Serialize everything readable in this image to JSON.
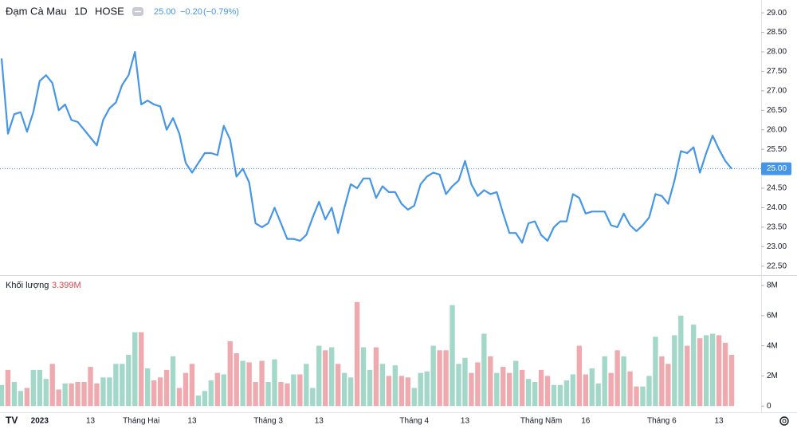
{
  "chart_data": [
    {
      "type": "line",
      "symbol": "Đạm Cà Mau",
      "interval": "1D",
      "exchange": "HOSE",
      "price_label": "25.00",
      "change_label": "−0.20",
      "change_pct_label": "(−0.79%)",
      "color": "#4596e6",
      "values": [
        27.83,
        25.9,
        26.4,
        26.45,
        25.95,
        26.45,
        27.25,
        27.4,
        27.2,
        26.5,
        26.65,
        26.25,
        26.2,
        26.0,
        25.8,
        25.6,
        26.25,
        26.55,
        26.7,
        27.15,
        27.4,
        28.0,
        26.65,
        26.75,
        26.65,
        26.6,
        26.0,
        26.3,
        25.9,
        25.15,
        24.9,
        25.15,
        25.4,
        25.4,
        25.35,
        26.1,
        25.75,
        24.8,
        25.0,
        24.65,
        23.6,
        23.5,
        23.6,
        24.0,
        23.6,
        23.2,
        23.2,
        23.15,
        23.3,
        23.75,
        24.15,
        23.7,
        24.0,
        23.35,
        24.0,
        24.6,
        24.5,
        24.75,
        24.75,
        24.25,
        24.55,
        24.4,
        24.4,
        24.1,
        23.95,
        24.05,
        24.6,
        24.8,
        24.9,
        24.85,
        24.35,
        24.55,
        24.7,
        25.2,
        24.6,
        24.3,
        24.45,
        24.35,
        24.4,
        23.85,
        23.35,
        23.35,
        23.1,
        23.6,
        23.65,
        23.3,
        23.15,
        23.5,
        23.65,
        23.65,
        24.35,
        24.25,
        23.85,
        23.9,
        23.9,
        23.9,
        23.55,
        23.5,
        23.85,
        23.55,
        23.4,
        23.55,
        23.75,
        24.35,
        24.3,
        24.1,
        24.7,
        25.45,
        25.4,
        25.55,
        24.9,
        25.4,
        25.85,
        25.5,
        25.2,
        25.0
      ],
      "ylim": [
        22.27,
        29.33
      ],
      "yticks": [
        {
          "value": 22.5,
          "label": "22.50"
        },
        {
          "value": 23,
          "label": "23.00"
        },
        {
          "value": 23.5,
          "label": "23.50"
        },
        {
          "value": 24,
          "label": "24.00"
        },
        {
          "value": 24.5,
          "label": "24.50"
        },
        {
          "value": 25,
          "label": "25.00"
        },
        {
          "value": 25.5,
          "label": "25.50"
        },
        {
          "value": 26,
          "label": "26.00"
        },
        {
          "value": 26.5,
          "label": "26.50"
        },
        {
          "value": 27,
          "label": "27.00"
        },
        {
          "value": 27.5,
          "label": "27.50"
        },
        {
          "value": 28,
          "label": "28.00"
        },
        {
          "value": 28.5,
          "label": "28.50"
        },
        {
          "value": 29,
          "label": "29.00"
        }
      ]
    },
    {
      "type": "bar",
      "title": "Khối lượng",
      "last_label": "3.399M",
      "up_color": "#a3d8c8",
      "down_color": "#eeaaae",
      "label_color": "#e0454c",
      "categories": [
        null,
        null,
        null,
        null,
        null,
        null,
        "2023",
        null,
        null,
        null,
        null,
        null,
        null,
        null,
        "13",
        null,
        null,
        null,
        null,
        null,
        null,
        null,
        "Tháng Hai",
        null,
        null,
        null,
        null,
        null,
        null,
        null,
        "13",
        null,
        null,
        null,
        null,
        null,
        null,
        null,
        null,
        null,
        null,
        null,
        "Tháng 3",
        null,
        null,
        null,
        null,
        null,
        null,
        null,
        "13",
        null,
        null,
        null,
        null,
        null,
        null,
        null,
        null,
        null,
        null,
        null,
        null,
        null,
        null,
        "Tháng 4",
        null,
        null,
        null,
        null,
        null,
        null,
        null,
        "13",
        null,
        null,
        null,
        null,
        null,
        null,
        null,
        null,
        null,
        null,
        null,
        "Tháng Năm",
        null,
        null,
        null,
        null,
        null,
        null,
        "16",
        null,
        null,
        null,
        null,
        null,
        null,
        null,
        null,
        null,
        null,
        null,
        "Tháng 6",
        null,
        null,
        null,
        null,
        null,
        null,
        null,
        null,
        "13",
        null,
        null
      ],
      "values": [
        1.4,
        2.4,
        1.6,
        1.0,
        1.2,
        2.4,
        2.4,
        1.8,
        2.8,
        1.1,
        1.5,
        1.5,
        1.6,
        1.6,
        2.6,
        1.5,
        1.9,
        1.9,
        2.8,
        2.8,
        3.4,
        4.9,
        4.9,
        2.5,
        1.7,
        1.9,
        2.4,
        3.3,
        1.2,
        2.2,
        2.8,
        0.7,
        1.0,
        1.7,
        2.2,
        2.1,
        4.3,
        3.5,
        3.0,
        2.9,
        1.6,
        3.0,
        1.6,
        3.1,
        1.6,
        1.5,
        2.1,
        2.1,
        2.8,
        1.2,
        4.0,
        3.7,
        3.9,
        2.8,
        2.2,
        1.9,
        6.9,
        3.9,
        2.4,
        3.9,
        2.8,
        2.0,
        2.7,
        2.0,
        1.9,
        1.2,
        2.2,
        2.3,
        4.0,
        3.7,
        3.7,
        6.7,
        2.8,
        3.2,
        2.2,
        2.9,
        4.8,
        3.3,
        2.2,
        2.6,
        2.2,
        3.0,
        2.4,
        1.8,
        1.6,
        2.4,
        2.0,
        1.4,
        1.4,
        1.7,
        2.1,
        4.0,
        2.1,
        2.5,
        1.5,
        3.3,
        2.2,
        3.7,
        3.3,
        2.3,
        1.3,
        1.3,
        2.0,
        4.6,
        3.3,
        2.8,
        4.7,
        6.0,
        4.0,
        5.4,
        4.5,
        4.7,
        4.8,
        4.7,
        4.2,
        3.399
      ],
      "ylim": [
        -0.2,
        8.69
      ],
      "yticks": [
        0,
        {
          "value": 2,
          "label": "2M"
        },
        {
          "value": 4,
          "label": "4M"
        },
        {
          "value": 6,
          "label": "6M"
        },
        {
          "value": 8,
          "label": "8M"
        }
      ]
    }
  ]
}
